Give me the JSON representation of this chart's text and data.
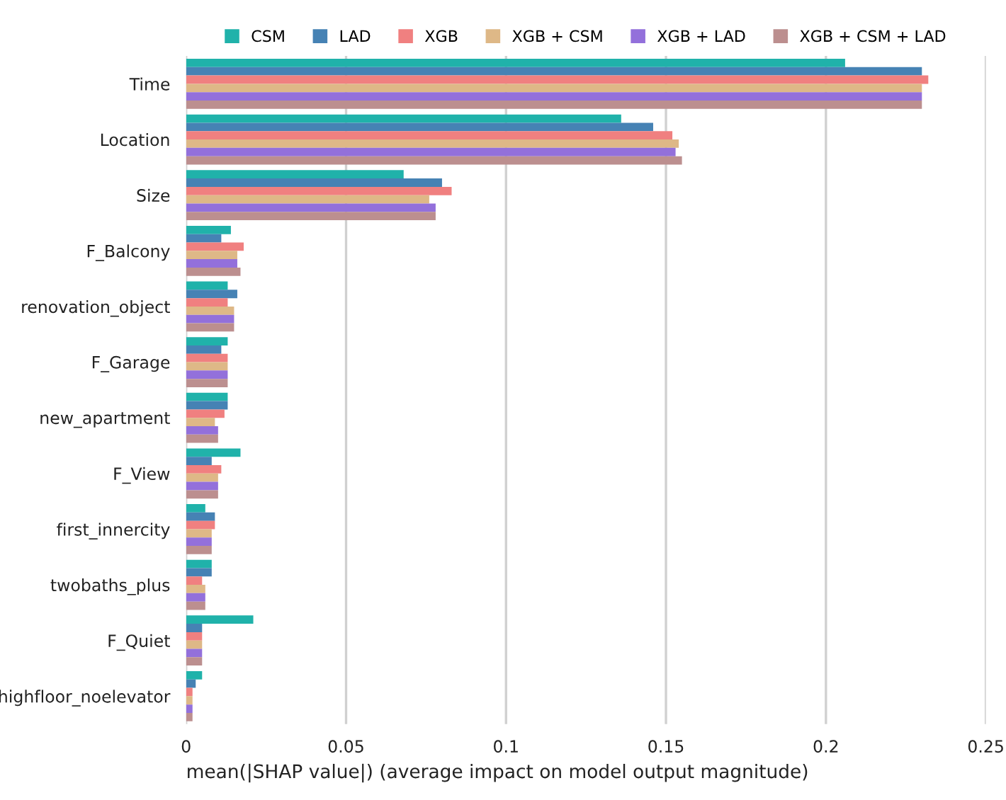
{
  "chart_data": {
    "type": "bar",
    "orientation": "horizontal",
    "xlabel": "mean(|SHAP value|) (average impact on model output magnitude)",
    "categories": [
      "Time",
      "Location",
      "Size",
      "F_Balcony",
      "renovation_object",
      "F_Garage",
      "new_apartment",
      "F_View",
      "first_innercity",
      "twobaths_plus",
      "F_Quiet",
      "highfloor_noelevator"
    ],
    "series": [
      {
        "name": "CSM",
        "color": "#20b2aa",
        "values": [
          0.206,
          0.136,
          0.068,
          0.014,
          0.013,
          0.013,
          0.013,
          0.017,
          0.006,
          0.008,
          0.021,
          0.005
        ]
      },
      {
        "name": "LAD",
        "color": "#4682b4",
        "values": [
          0.23,
          0.146,
          0.08,
          0.011,
          0.016,
          0.011,
          0.013,
          0.008,
          0.009,
          0.008,
          0.005,
          0.003
        ]
      },
      {
        "name": "XGB",
        "color": "#f08080",
        "values": [
          0.232,
          0.152,
          0.083,
          0.018,
          0.013,
          0.013,
          0.012,
          0.011,
          0.009,
          0.005,
          0.005,
          0.002
        ]
      },
      {
        "name": "XGB + CSM",
        "color": "#deb887",
        "values": [
          0.23,
          0.154,
          0.076,
          0.016,
          0.015,
          0.013,
          0.009,
          0.01,
          0.008,
          0.006,
          0.005,
          0.002
        ]
      },
      {
        "name": "XGB + LAD",
        "color": "#9370db",
        "values": [
          0.23,
          0.153,
          0.078,
          0.016,
          0.015,
          0.013,
          0.01,
          0.01,
          0.008,
          0.006,
          0.005,
          0.002
        ]
      },
      {
        "name": "XGB + CSM + LAD",
        "color": "#bc8f8f",
        "values": [
          0.23,
          0.155,
          0.078,
          0.017,
          0.015,
          0.013,
          0.01,
          0.01,
          0.008,
          0.006,
          0.005,
          0.002
        ]
      }
    ],
    "xlim": [
      0,
      0.25
    ],
    "xticks": [
      0,
      0.05,
      {
        "value": 0.1,
        "label": "0.1"
      },
      0.15,
      {
        "value": 0.2,
        "label": "0.2"
      },
      0.25
    ],
    "grid": "x",
    "legend": "top"
  }
}
